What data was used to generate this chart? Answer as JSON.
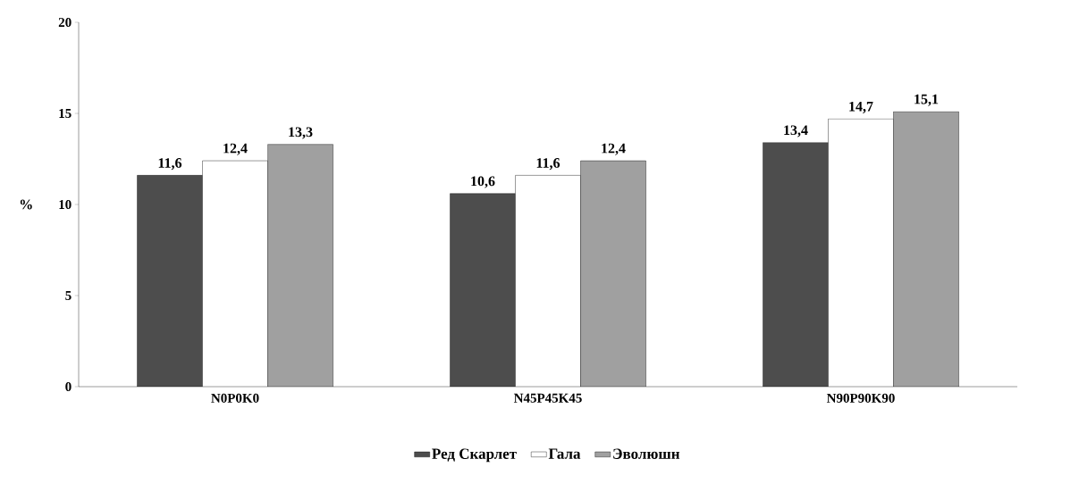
{
  "chart_data": {
    "type": "bar",
    "ylabel": "%",
    "categories": [
      "N0P0K0",
      "N45P45K45",
      "N90P90K90"
    ],
    "series": [
      {
        "name": "Ред Скарлет",
        "color": "#4d4d4d",
        "values": [
          11.6,
          10.6,
          13.4
        ],
        "value_labels": [
          "11,6",
          "10,6",
          "13,4"
        ]
      },
      {
        "name": "Гала",
        "color": "#ffffff",
        "values": [
          12.4,
          11.6,
          14.7
        ],
        "value_labels": [
          "12,4",
          "11,6",
          "14,7"
        ]
      },
      {
        "name": "Эволюшн",
        "color": "#a0a0a0",
        "values": [
          13.3,
          12.4,
          15.1
        ],
        "value_labels": [
          "13,3",
          "12,4",
          "15,1"
        ]
      }
    ],
    "ylim": [
      0,
      20
    ],
    "yticks": [
      0,
      5,
      10,
      15,
      20
    ],
    "grid": false,
    "legend": "bottom"
  }
}
